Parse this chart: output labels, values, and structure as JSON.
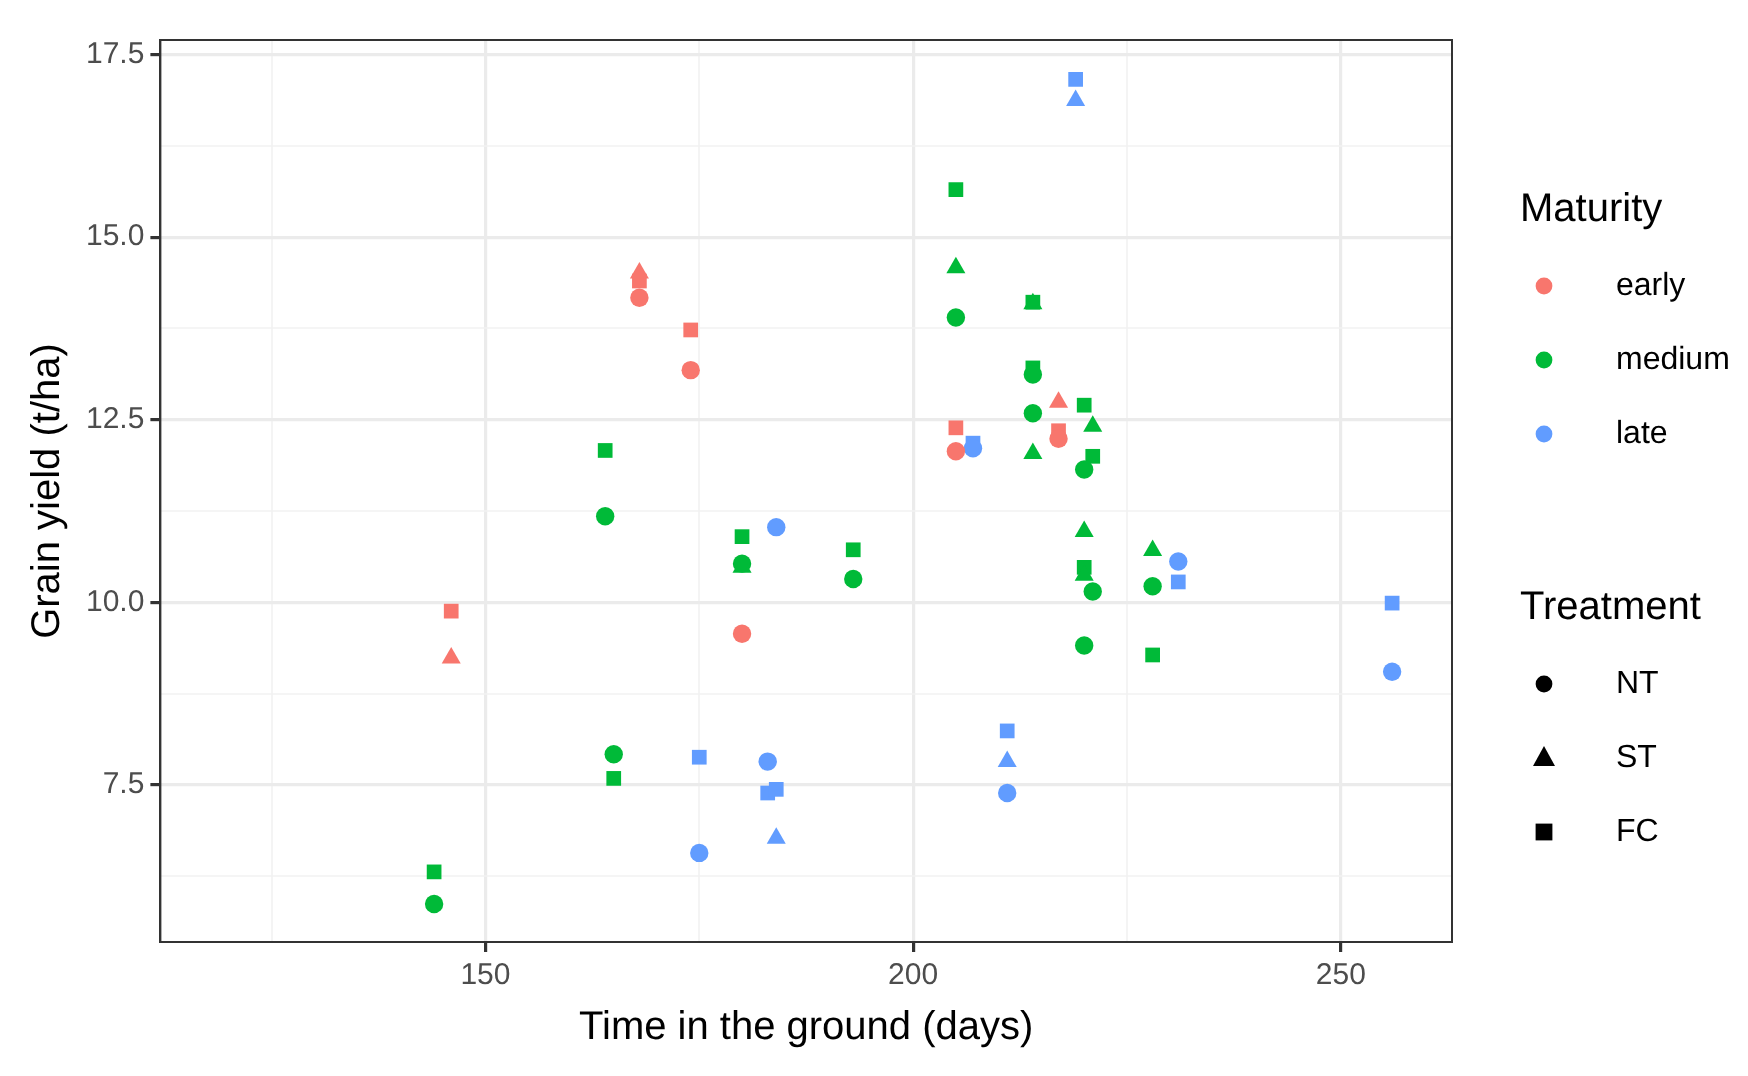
{
  "chart_data": {
    "type": "scatter",
    "xlabel": "Time in the ground (days)",
    "ylabel": "Grain yield (t/ha)",
    "legend_title": [
      "Maturity",
      "Treatment"
    ],
    "xlim": [
      112,
      263
    ],
    "ylim": [
      5.35,
      17.7
    ],
    "xticks": [
      {
        "value": 125,
        "label": null
      },
      150,
      {
        "value": 175,
        "label": null
      },
      200,
      {
        "value": 225,
        "label": null
      },
      250
    ],
    "yticks": [
      {
        "value": 6.25,
        "label": null
      },
      7.5,
      {
        "value": 8.75,
        "label": null
      },
      {
        "value": 10,
        "label": "10.0"
      },
      {
        "value": 11.25,
        "label": null
      },
      {
        "value": 12.5,
        "label": "12.5"
      },
      {
        "value": 13.75,
        "label": null
      },
      {
        "value": 15,
        "label": "15.0"
      },
      {
        "value": 16.25,
        "label": null
      },
      {
        "value": 17.5,
        "label": "17.5"
      }
    ],
    "grid": true,
    "legend": "right",
    "series": [
      {
        "color": "#f8766d",
        "marker": "circle",
        "x": [
          168,
          174,
          180,
          205,
          217
        ],
        "values": [
          14.17,
          13.18,
          9.57,
          12.07,
          12.24
        ]
      },
      {
        "color": "#f8766d",
        "marker": "triangle",
        "x": [
          168,
          146,
          217
        ],
        "values": [
          14.51,
          9.24,
          12.74
        ]
      },
      {
        "color": "#f8766d",
        "marker": "square",
        "x": [
          168,
          174,
          146,
          205,
          217
        ],
        "values": [
          14.4,
          13.73,
          9.88,
          12.39,
          12.35
        ]
      },
      {
        "color": "#00ba38",
        "marker": "circle",
        "x": [
          164,
          180,
          165,
          144,
          205,
          214,
          214,
          220,
          221,
          193,
          228,
          220
        ],
        "values": [
          11.18,
          10.53,
          7.92,
          5.87,
          13.9,
          13.12,
          12.59,
          11.82,
          10.15,
          10.32,
          10.22,
          9.41
        ]
      },
      {
        "color": "#00ba38",
        "marker": "triangle",
        "x": [
          180,
          205,
          214,
          214,
          221,
          220,
          220,
          228
        ],
        "values": [
          10.48,
          14.58,
          14.09,
          12.04,
          12.41,
          10.97,
          10.37,
          10.71
        ]
      },
      {
        "color": "#00ba38",
        "marker": "square",
        "x": [
          164,
          180,
          165,
          144,
          205,
          214,
          214,
          220,
          221,
          220,
          193,
          228
        ],
        "values": [
          12.08,
          10.9,
          7.59,
          6.31,
          15.65,
          14.11,
          13.21,
          12.7,
          12.0,
          10.48,
          10.72,
          9.28
        ]
      },
      {
        "color": "#619cff",
        "marker": "circle",
        "x": [
          184,
          175,
          183,
          207,
          231,
          256,
          211
        ],
        "values": [
          11.03,
          6.57,
          7.82,
          12.11,
          10.56,
          9.05,
          7.39
        ]
      },
      {
        "color": "#619cff",
        "marker": "triangle",
        "x": [
          184,
          219,
          211
        ],
        "values": [
          6.77,
          16.87,
          7.82
        ]
      },
      {
        "color": "#619cff",
        "marker": "square",
        "x": [
          175,
          183,
          184,
          219,
          207,
          231,
          256,
          211
        ],
        "values": [
          7.88,
          7.39,
          7.44,
          17.16,
          12.18,
          10.28,
          9.99,
          8.24
        ]
      },
      {
        "name": "early",
        "color": "#f8766d",
        "marker": "circle"
      },
      {
        "name": "medium",
        "color": "#00ba38",
        "marker": "circle"
      },
      {
        "name": "late",
        "color": "#619cff",
        "marker": "circle"
      },
      {
        "name": "NT",
        "color": "#000000",
        "marker": "circle"
      },
      {
        "name": "ST",
        "color": "#000000",
        "marker": "triangle"
      },
      {
        "name": "FC",
        "color": "#000000",
        "marker": "square"
      }
    ]
  }
}
